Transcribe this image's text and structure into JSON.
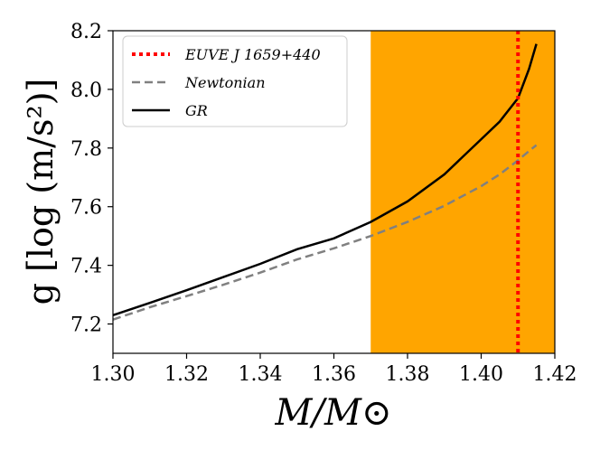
{
  "chart_data": {
    "type": "line",
    "x": [
      1.3,
      1.31,
      1.32,
      1.33,
      1.34,
      1.35,
      1.36,
      1.37,
      1.38,
      1.39,
      1.4,
      1.405,
      1.41,
      1.413,
      1.415
    ],
    "series": [
      {
        "name": "Newtonian",
        "style": "dashed",
        "color": "#808080",
        "values": [
          7.215,
          7.257,
          7.295,
          7.334,
          7.375,
          7.42,
          7.458,
          7.5,
          7.548,
          7.603,
          7.67,
          7.71,
          7.758,
          7.79,
          7.81
        ]
      },
      {
        "name": "GR",
        "style": "solid",
        "color": "#000000",
        "values": [
          7.23,
          7.272,
          7.315,
          7.36,
          7.405,
          7.455,
          7.492,
          7.548,
          7.618,
          7.71,
          7.83,
          7.89,
          7.97,
          8.07,
          8.155
        ]
      }
    ],
    "vline": {
      "name": "EUVE J 1659+440",
      "x": 1.41,
      "color": "#ff0000",
      "style": "dotted"
    },
    "shaded_region": {
      "x0": 1.37,
      "x1": 1.42,
      "color": "#ffa500"
    },
    "xlim": [
      1.3,
      1.42
    ],
    "ylim": [
      7.1,
      8.2
    ],
    "xticks": [
      1.3,
      1.32,
      1.34,
      1.36,
      1.38,
      1.4,
      1.42
    ],
    "yticks": [
      7.2,
      7.4,
      7.6,
      7.8,
      8.0,
      8.2
    ],
    "xtick_labels": [
      "1.30",
      "1.32",
      "1.34",
      "1.36",
      "1.38",
      "1.40",
      "1.42"
    ],
    "ytick_labels": [
      "7.2",
      "7.4",
      "7.6",
      "7.8",
      "8.0",
      "8.2"
    ],
    "xlabel": "M/M⊙",
    "ylabel": "g [log (m/s²)]",
    "legend_position": "top-left",
    "legend": [
      {
        "label": "EUVE J 1659+440",
        "style": "dotted",
        "color": "#ff0000"
      },
      {
        "label": "Newtonian",
        "style": "dashed",
        "color": "#808080"
      },
      {
        "label": "GR",
        "style": "solid",
        "color": "#000000"
      }
    ]
  }
}
